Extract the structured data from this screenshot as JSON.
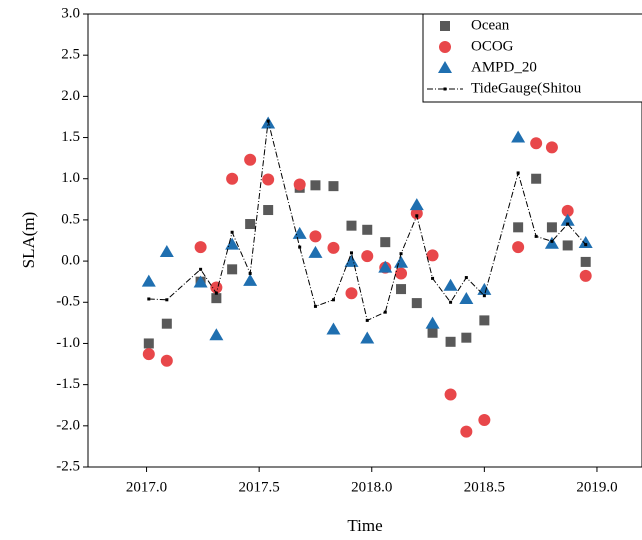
{
  "chart_data": {
    "type": "scatter",
    "xlabel": "Time",
    "ylabel": "SLA(m)",
    "x": [
      2017.01,
      2017.09,
      2017.24,
      2017.31,
      2017.38,
      2017.46,
      2017.54,
      2017.68,
      2017.75,
      2017.83,
      2017.91,
      2017.98,
      2018.06,
      2018.13,
      2018.2,
      2018.27,
      2018.35,
      2018.42,
      2018.5,
      2018.65,
      2018.73,
      2018.8,
      2018.87,
      2018.95
    ],
    "series": [
      {
        "name": "Ocean",
        "color": "#595959",
        "marker": "square",
        "values": [
          -1.0,
          -0.76,
          -0.25,
          -0.45,
          -0.1,
          0.45,
          0.62,
          0.89,
          0.92,
          0.91,
          0.43,
          0.38,
          0.23,
          -0.34,
          -0.51,
          -0.87,
          -0.98,
          -0.93,
          -0.72,
          0.41,
          1.0,
          0.41,
          0.19,
          -0.01
        ]
      },
      {
        "name": "OCOG",
        "color": "#e8474a",
        "marker": "circle",
        "values": [
          -1.13,
          -1.21,
          0.17,
          -0.32,
          1.0,
          1.23,
          0.99,
          0.93,
          0.3,
          0.16,
          -0.39,
          0.06,
          -0.08,
          -0.15,
          0.58,
          0.07,
          -1.62,
          -2.07,
          -1.93,
          0.17,
          1.43,
          1.38,
          0.61,
          -0.18
        ]
      },
      {
        "name": "AMPD_20",
        "color": "#1f6fb0",
        "marker": "triangle",
        "values": [
          -0.25,
          0.11,
          -0.26,
          -0.9,
          0.2,
          -0.24,
          1.67,
          0.33,
          0.1,
          -0.83,
          -0.01,
          -0.94,
          -0.08,
          -0.02,
          0.68,
          -0.76,
          -0.3,
          -0.46,
          -0.35,
          1.5,
          null,
          0.21,
          0.49,
          0.22
        ]
      },
      {
        "name": "TideGauge(Shitou",
        "color": "#000000",
        "marker": "line",
        "values": [
          -0.46,
          -0.47,
          -0.1,
          -0.39,
          0.35,
          -0.15,
          1.7,
          0.17,
          -0.55,
          -0.47,
          0.1,
          -0.72,
          -0.62,
          0.09,
          0.55,
          -0.21,
          -0.5,
          -0.2,
          -0.42,
          1.07,
          0.3,
          0.24,
          0.45,
          0.2
        ]
      }
    ],
    "xlim": [
      2016.74,
      2019.2
    ],
    "xticks": [
      {
        "value": 2017,
        "label": "2017.0"
      },
      2017.5,
      {
        "value": 2018,
        "label": "2018.0"
      },
      2018.5,
      {
        "value": 2019,
        "label": "2019.0"
      }
    ],
    "ylim": [
      -2.5,
      3
    ],
    "yticks": [
      {
        "value": -2.5,
        "label": "-2.5"
      },
      {
        "value": -2,
        "label": "-2.0"
      },
      {
        "value": -1.5,
        "label": "-1.5"
      },
      {
        "value": -1,
        "label": "-1.0"
      },
      {
        "value": -0.5,
        "label": "-0.5"
      },
      {
        "value": 0,
        "label": "0.0"
      },
      {
        "value": 0.5,
        "label": "0.5"
      },
      {
        "value": 1,
        "label": "1.0"
      },
      {
        "value": 1.5,
        "label": "1.5"
      },
      {
        "value": 2,
        "label": "2.0"
      },
      {
        "value": 2.5,
        "label": "2.5"
      },
      {
        "value": 3,
        "label": "3.0"
      }
    ],
    "legend": "top-right"
  }
}
